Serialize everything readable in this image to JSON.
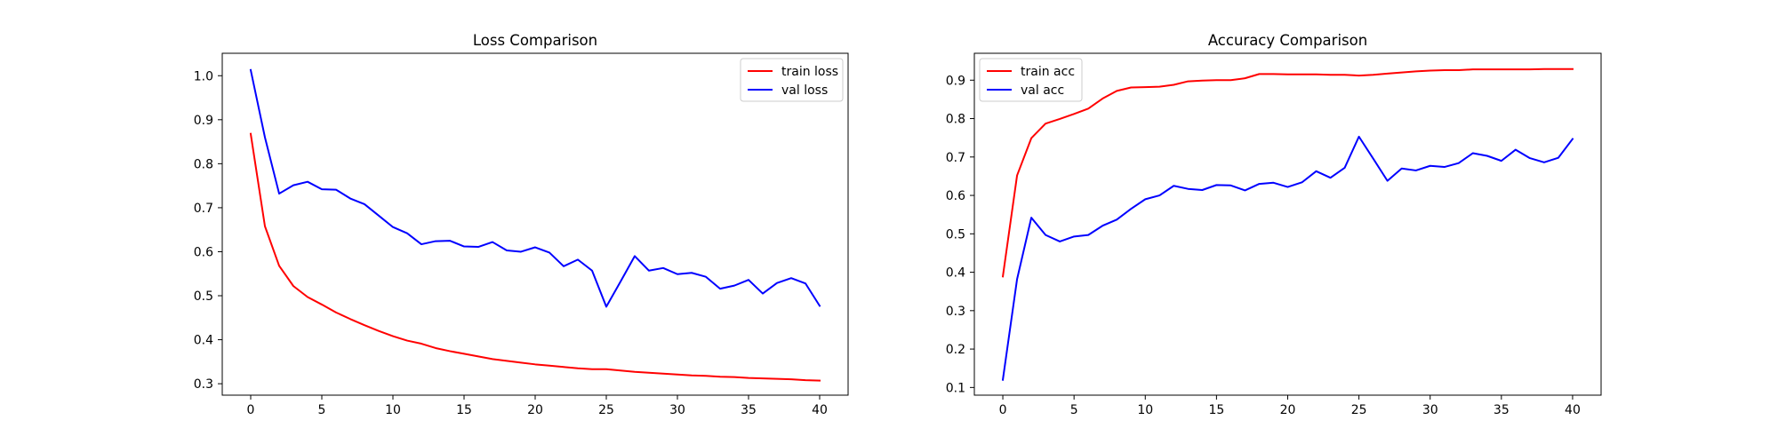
{
  "chart_data": [
    {
      "type": "line",
      "title": "Loss Comparison",
      "xlabel": "",
      "ylabel": "",
      "xlim": [
        -2,
        42
      ],
      "ylim": [
        0.274,
        1.051
      ],
      "xticks": [
        0,
        5,
        10,
        15,
        20,
        25,
        30,
        35,
        40
      ],
      "yticks": [
        0.3,
        0.4,
        0.5,
        0.6,
        0.7,
        0.8,
        0.9,
        1.0
      ],
      "ytick_format": 1,
      "grid": false,
      "legend": "upper-right",
      "series": [
        {
          "name": "train loss",
          "color": "#ff0000",
          "x": [
            0,
            1,
            2,
            3,
            4,
            5,
            6,
            7,
            8,
            9,
            10,
            11,
            12,
            13,
            14,
            15,
            16,
            17,
            18,
            19,
            20,
            21,
            22,
            23,
            24,
            25,
            26,
            27,
            28,
            29,
            30,
            31,
            32,
            33,
            34,
            35,
            36,
            37,
            38,
            39,
            40
          ],
          "values": [
            0.868,
            0.658,
            0.568,
            0.522,
            0.497,
            0.48,
            0.462,
            0.447,
            0.433,
            0.42,
            0.408,
            0.398,
            0.391,
            0.381,
            0.374,
            0.368,
            0.362,
            0.356,
            0.352,
            0.348,
            0.344,
            0.341,
            0.338,
            0.335,
            0.333,
            0.333,
            0.33,
            0.327,
            0.325,
            0.323,
            0.321,
            0.319,
            0.318,
            0.316,
            0.315,
            0.313,
            0.312,
            0.311,
            0.31,
            0.308,
            0.307
          ]
        },
        {
          "name": "val loss",
          "color": "#0000ff",
          "x": [
            0,
            1,
            2,
            3,
            4,
            5,
            6,
            7,
            8,
            9,
            10,
            11,
            12,
            13,
            14,
            15,
            16,
            17,
            18,
            19,
            20,
            21,
            22,
            23,
            24,
            25,
            26,
            27,
            28,
            29,
            30,
            31,
            32,
            33,
            34,
            35,
            36,
            37,
            38,
            39,
            40
          ],
          "values": [
            1.013,
            0.86,
            0.732,
            0.751,
            0.759,
            0.742,
            0.741,
            0.721,
            0.708,
            0.682,
            0.656,
            0.642,
            0.617,
            0.624,
            0.625,
            0.612,
            0.611,
            0.622,
            0.603,
            0.6,
            0.61,
            0.598,
            0.567,
            0.582,
            0.557,
            0.475,
            0.532,
            0.59,
            0.557,
            0.563,
            0.549,
            0.552,
            0.543,
            0.516,
            0.523,
            0.536,
            0.505,
            0.529,
            0.54,
            0.528,
            0.477
          ]
        }
      ]
    },
    {
      "type": "line",
      "title": "Accuracy Comparison",
      "xlabel": "",
      "ylabel": "",
      "xlim": [
        -2,
        42
      ],
      "ylim": [
        0.08,
        0.97
      ],
      "xticks": [
        0,
        5,
        10,
        15,
        20,
        25,
        30,
        35,
        40
      ],
      "yticks": [
        0.1,
        0.2,
        0.3,
        0.4,
        0.5,
        0.6,
        0.7,
        0.8,
        0.9
      ],
      "ytick_format": 1,
      "grid": false,
      "legend": "upper-left",
      "series": [
        {
          "name": "train acc",
          "color": "#ff0000",
          "x": [
            0,
            1,
            2,
            3,
            4,
            5,
            6,
            7,
            8,
            9,
            10,
            11,
            12,
            13,
            14,
            15,
            16,
            17,
            18,
            19,
            20,
            21,
            22,
            23,
            24,
            25,
            26,
            27,
            28,
            29,
            30,
            31,
            32,
            33,
            34,
            35,
            36,
            37,
            38,
            39,
            40
          ],
          "values": [
            0.389,
            0.652,
            0.749,
            0.787,
            0.799,
            0.812,
            0.826,
            0.852,
            0.872,
            0.881,
            0.882,
            0.883,
            0.888,
            0.897,
            0.899,
            0.9,
            0.9,
            0.905,
            0.916,
            0.916,
            0.915,
            0.915,
            0.915,
            0.914,
            0.914,
            0.912,
            0.914,
            0.917,
            0.92,
            0.923,
            0.925,
            0.926,
            0.926,
            0.928,
            0.928,
            0.928,
            0.928,
            0.928,
            0.929,
            0.929,
            0.929
          ]
        },
        {
          "name": "val acc",
          "color": "#0000ff",
          "x": [
            0,
            1,
            2,
            3,
            4,
            5,
            6,
            7,
            8,
            9,
            10,
            11,
            12,
            13,
            14,
            15,
            16,
            17,
            18,
            19,
            20,
            21,
            22,
            23,
            24,
            25,
            26,
            27,
            28,
            29,
            30,
            31,
            32,
            33,
            34,
            35,
            36,
            37,
            38,
            39,
            40
          ],
          "values": [
            0.12,
            0.382,
            0.542,
            0.497,
            0.48,
            0.493,
            0.497,
            0.521,
            0.537,
            0.565,
            0.59,
            0.6,
            0.625,
            0.617,
            0.614,
            0.627,
            0.626,
            0.613,
            0.63,
            0.633,
            0.622,
            0.634,
            0.663,
            0.646,
            0.672,
            0.753,
            0.696,
            0.638,
            0.67,
            0.665,
            0.677,
            0.674,
            0.684,
            0.71,
            0.703,
            0.69,
            0.719,
            0.697,
            0.686,
            0.698,
            0.747
          ]
        }
      ]
    }
  ]
}
